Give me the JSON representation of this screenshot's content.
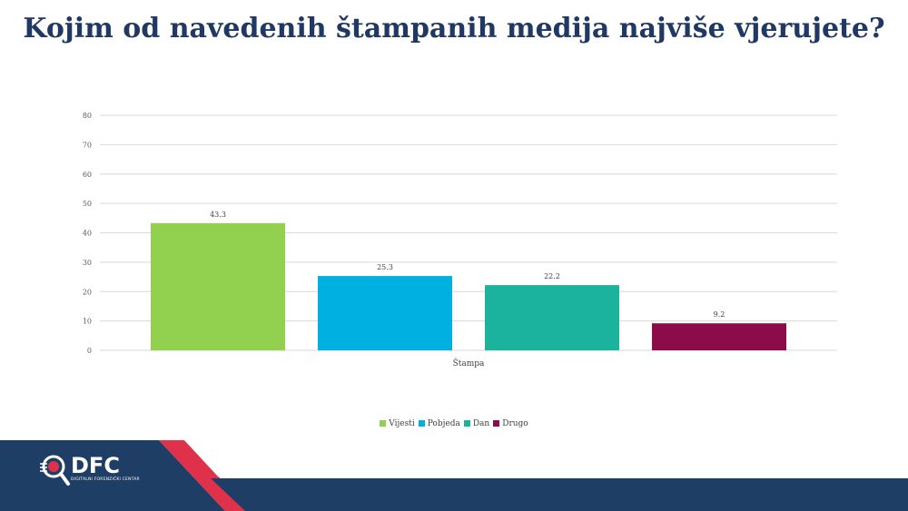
{
  "title": "Kojim od navedenih štampanih medija najviše vjerujete?",
  "logo": {
    "name": "DFC",
    "subtitle": "DIGITALNI FORENZIČKI CENTAR"
  },
  "colors": {
    "title": "#1f3864",
    "footer_navy": "#1f3e66",
    "footer_red": "#e0314b",
    "grid": "#d9d9d9"
  },
  "chart_data": {
    "type": "bar",
    "categories": [
      "Štampa"
    ],
    "series": [
      {
        "name": "Vijesti",
        "values": [
          43.3
        ],
        "color": "#92d050"
      },
      {
        "name": "Pobjeda",
        "values": [
          25.3
        ],
        "color": "#00b0e0"
      },
      {
        "name": "Dan",
        "values": [
          22.2
        ],
        "color": "#1bb39e"
      },
      {
        "name": "Drugo",
        "values": [
          9.2
        ],
        "color": "#8b0c48"
      }
    ],
    "title": "",
    "xlabel": "",
    "ylabel": "",
    "ylim": [
      0,
      80
    ],
    "yticks": [
      0,
      10,
      20,
      30,
      40,
      50,
      60,
      70,
      80
    ],
    "grid": true,
    "legend": "bottom"
  }
}
